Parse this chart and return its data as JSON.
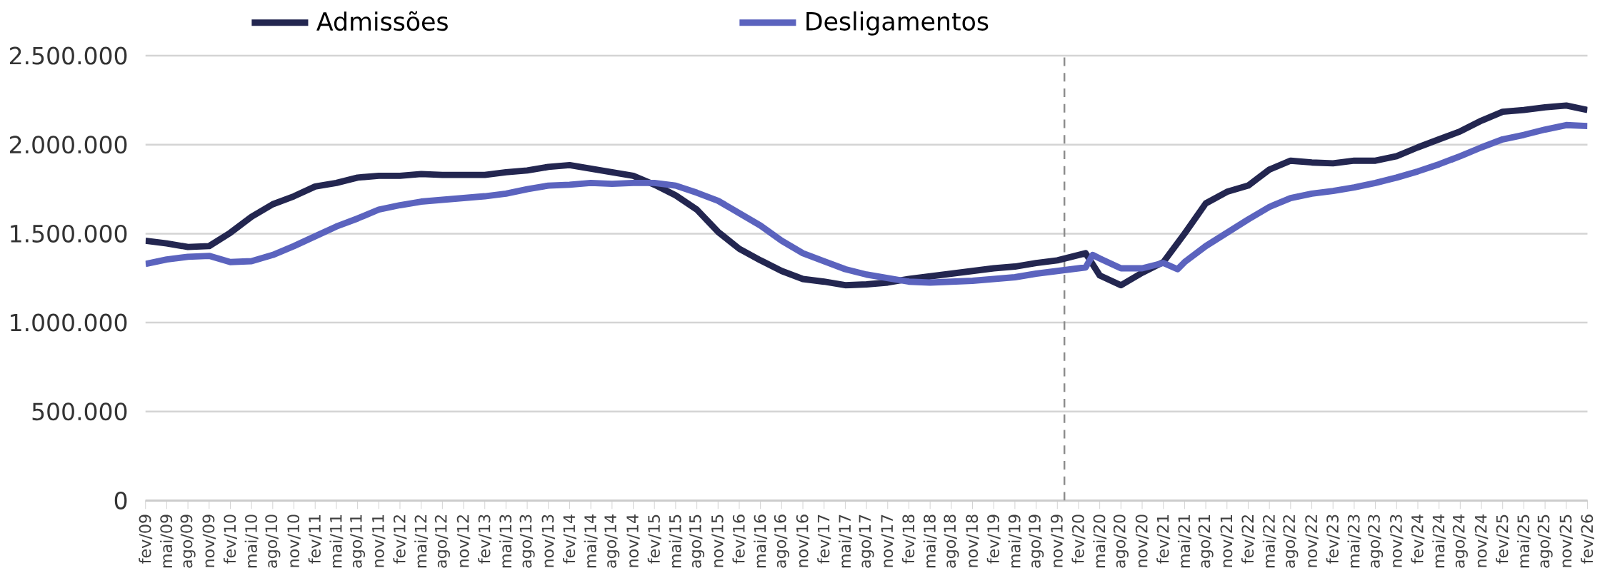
{
  "chart_data": {
    "type": "line",
    "xlim": [
      "2009-02",
      "2026-02"
    ],
    "xticks": [
      {
        "value": "2009-02",
        "label": "fev/09"
      },
      {
        "value": "2009-05",
        "label": "mai/09"
      },
      {
        "value": "2009-08",
        "label": "ago/09"
      },
      {
        "value": "2009-11",
        "label": "nov/09"
      },
      {
        "value": "2010-02",
        "label": "fev/10"
      },
      {
        "value": "2010-05",
        "label": "mai/10"
      },
      {
        "value": "2010-08",
        "label": "ago/10"
      },
      {
        "value": "2010-11",
        "label": "nov/10"
      },
      {
        "value": "2011-02",
        "label": "fev/11"
      },
      {
        "value": "2011-05",
        "label": "mai/11"
      },
      {
        "value": "2011-08",
        "label": "ago/11"
      },
      {
        "value": "2011-11",
        "label": "nov/11"
      },
      {
        "value": "2012-02",
        "label": "fev/12"
      },
      {
        "value": "2012-05",
        "label": "mai/12"
      },
      {
        "value": "2012-08",
        "label": "ago/12"
      },
      {
        "value": "2012-11",
        "label": "nov/12"
      },
      {
        "value": "2013-02",
        "label": "fev/13"
      },
      {
        "value": "2013-05",
        "label": "mai/13"
      },
      {
        "value": "2013-08",
        "label": "ago/13"
      },
      {
        "value": "2013-11",
        "label": "nov/13"
      },
      {
        "value": "2014-02",
        "label": "fev/14"
      },
      {
        "value": "2014-05",
        "label": "mai/14"
      },
      {
        "value": "2014-08",
        "label": "ago/14"
      },
      {
        "value": "2014-11",
        "label": "nov/14"
      },
      {
        "value": "2015-02",
        "label": "fev/15"
      },
      {
        "value": "2015-05",
        "label": "mai/15"
      },
      {
        "value": "2015-08",
        "label": "ago/15"
      },
      {
        "value": "2015-11",
        "label": "nov/15"
      },
      {
        "value": "2016-02",
        "label": "fev/16"
      },
      {
        "value": "2016-05",
        "label": "mai/16"
      },
      {
        "value": "2016-08",
        "label": "ago/16"
      },
      {
        "value": "2016-11",
        "label": "nov/16"
      },
      {
        "value": "2017-02",
        "label": "fev/17"
      },
      {
        "value": "2017-05",
        "label": "mai/17"
      },
      {
        "value": "2017-08",
        "label": "ago/17"
      },
      {
        "value": "2017-11",
        "label": "nov/17"
      },
      {
        "value": "2018-02",
        "label": "fev/18"
      },
      {
        "value": "2018-05",
        "label": "mai/18"
      },
      {
        "value": "2018-08",
        "label": "ago/18"
      },
      {
        "value": "2018-11",
        "label": "nov/18"
      },
      {
        "value": "2019-02",
        "label": "fev/19"
      },
      {
        "value": "2019-05",
        "label": "mai/19"
      },
      {
        "value": "2019-08",
        "label": "ago/19"
      },
      {
        "value": "2019-11",
        "label": "nov/19"
      },
      {
        "value": "2020-02",
        "label": "fev/20"
      },
      {
        "value": "2020-05",
        "label": "mai/20"
      },
      {
        "value": "2020-08",
        "label": "ago/20"
      },
      {
        "value": "2020-11",
        "label": "nov/20"
      },
      {
        "value": "2021-02",
        "label": "fev/21"
      },
      {
        "value": "2021-05",
        "label": "mai/21"
      },
      {
        "value": "2021-08",
        "label": "ago/21"
      },
      {
        "value": "2021-11",
        "label": "nov/21"
      },
      {
        "value": "2022-02",
        "label": "fev/22"
      },
      {
        "value": "2022-05",
        "label": "mai/22"
      },
      {
        "value": "2022-08",
        "label": "ago/22"
      },
      {
        "value": "2022-11",
        "label": "nov/22"
      },
      {
        "value": "2023-02",
        "label": "fev/23"
      },
      {
        "value": "2023-05",
        "label": "mai/23"
      },
      {
        "value": "2023-08",
        "label": "ago/23"
      },
      {
        "value": "2023-11",
        "label": "nov/23"
      },
      {
        "value": "2024-02",
        "label": "fev/24"
      },
      {
        "value": "2024-05",
        "label": "mai/24"
      },
      {
        "value": "2024-08",
        "label": "ago/24"
      },
      {
        "value": "2024-11",
        "label": "nov/24"
      },
      {
        "value": "2025-02",
        "label": "fev/25"
      },
      {
        "value": "2025-05",
        "label": "mai/25"
      },
      {
        "value": "2025-08",
        "label": "ago/25"
      },
      {
        "value": "2025-11",
        "label": "nov/25"
      },
      {
        "value": "2026-02",
        "label": "fev/26"
      }
    ],
    "ylim": [
      0,
      2500000
    ],
    "yticks": [
      0,
      {
        "value": 500000,
        "label": "500.000"
      },
      {
        "value": 1000000,
        "label": "1.000.000"
      },
      {
        "value": 1500000,
        "label": "1.500.000"
      },
      {
        "value": 2000000,
        "label": "2.000.000"
      },
      {
        "value": 2500000,
        "label": "2.500.000"
      }
    ],
    "grid": "y",
    "legend": "top",
    "marker": "none",
    "line_style": "solid",
    "ref_lines": [
      {
        "axis": "x",
        "value": "2019-12",
        "color": "#8c8c8c",
        "line_style": "dashed"
      }
    ],
    "series": [
      {
        "name": "Admissões",
        "color": "#232650",
        "x": [
          "2009-02",
          "2009-05",
          "2009-08",
          "2009-11",
          "2010-02",
          "2010-05",
          "2010-08",
          "2010-11",
          "2011-02",
          "2011-05",
          "2011-08",
          "2011-11",
          "2012-02",
          "2012-05",
          "2012-08",
          "2012-11",
          "2013-02",
          "2013-05",
          "2013-08",
          "2013-11",
          "2014-02",
          "2014-05",
          "2014-08",
          "2014-11",
          "2015-02",
          "2015-05",
          "2015-08",
          "2015-11",
          "2016-02",
          "2016-05",
          "2016-08",
          "2016-11",
          "2017-02",
          "2017-05",
          "2017-08",
          "2017-11",
          "2018-02",
          "2018-05",
          "2018-08",
          "2018-11",
          "2019-02",
          "2019-05",
          "2019-08",
          "2019-11",
          "2020-02",
          "2020-03",
          "2020-05",
          "2020-08",
          "2020-11",
          "2021-02",
          "2021-05",
          "2021-08",
          "2021-11",
          "2022-02",
          "2022-05",
          "2022-08",
          "2022-11",
          "2023-02",
          "2023-05",
          "2023-08",
          "2023-11",
          "2024-02",
          "2024-05",
          "2024-08",
          "2024-11",
          "2025-02",
          "2025-05",
          "2025-08",
          "2025-11",
          "2026-02"
        ],
        "values": [
          1460000,
          1445000,
          1425000,
          1430000,
          1505000,
          1595000,
          1665000,
          1710000,
          1765000,
          1785000,
          1815000,
          1825000,
          1825000,
          1835000,
          1830000,
          1830000,
          1830000,
          1845000,
          1855000,
          1875000,
          1885000,
          1865000,
          1845000,
          1825000,
          1775000,
          1715000,
          1635000,
          1510000,
          1415000,
          1350000,
          1290000,
          1245000,
          1230000,
          1210000,
          1215000,
          1225000,
          1245000,
          1260000,
          1275000,
          1290000,
          1305000,
          1315000,
          1335000,
          1350000,
          1380000,
          1390000,
          1265000,
          1210000,
          1280000,
          1340000,
          1500000,
          1670000,
          1735000,
          1770000,
          1860000,
          1910000,
          1900000,
          1895000,
          1910000,
          1910000,
          1935000,
          1985000,
          2030000,
          2075000,
          2135000,
          2185000,
          2195000,
          2210000,
          2220000,
          2195000
        ]
      },
      {
        "name": "Desligamentos",
        "color": "#5b63be",
        "x": [
          "2009-02",
          "2009-05",
          "2009-08",
          "2009-11",
          "2010-02",
          "2010-05",
          "2010-08",
          "2010-11",
          "2011-02",
          "2011-05",
          "2011-08",
          "2011-11",
          "2012-02",
          "2012-05",
          "2012-08",
          "2012-11",
          "2013-02",
          "2013-05",
          "2013-08",
          "2013-11",
          "2014-02",
          "2014-05",
          "2014-08",
          "2014-11",
          "2015-02",
          "2015-05",
          "2015-08",
          "2015-11",
          "2016-02",
          "2016-05",
          "2016-08",
          "2016-11",
          "2017-02",
          "2017-05",
          "2017-08",
          "2017-11",
          "2018-02",
          "2018-05",
          "2018-08",
          "2018-11",
          "2019-02",
          "2019-05",
          "2019-08",
          "2019-11",
          "2020-02",
          "2020-03",
          "2020-04",
          "2020-05",
          "2020-08",
          "2020-11",
          "2021-02",
          "2021-04",
          "2021-05",
          "2021-08",
          "2021-11",
          "2022-02",
          "2022-05",
          "2022-08",
          "2022-11",
          "2023-02",
          "2023-05",
          "2023-08",
          "2023-11",
          "2024-02",
          "2024-05",
          "2024-08",
          "2024-11",
          "2025-02",
          "2025-05",
          "2025-08",
          "2025-11",
          "2026-02"
        ],
        "values": [
          1330000,
          1355000,
          1370000,
          1375000,
          1340000,
          1345000,
          1380000,
          1430000,
          1485000,
          1540000,
          1585000,
          1635000,
          1660000,
          1680000,
          1690000,
          1700000,
          1710000,
          1725000,
          1750000,
          1770000,
          1775000,
          1785000,
          1780000,
          1785000,
          1785000,
          1770000,
          1730000,
          1685000,
          1615000,
          1545000,
          1460000,
          1390000,
          1345000,
          1300000,
          1270000,
          1250000,
          1230000,
          1225000,
          1230000,
          1235000,
          1245000,
          1255000,
          1275000,
          1290000,
          1305000,
          1310000,
          1380000,
          1360000,
          1305000,
          1305000,
          1335000,
          1300000,
          1340000,
          1430000,
          1505000,
          1580000,
          1650000,
          1700000,
          1725000,
          1740000,
          1760000,
          1785000,
          1815000,
          1850000,
          1890000,
          1935000,
          1985000,
          2030000,
          2055000,
          2085000,
          2110000,
          2105000
        ]
      }
    ]
  }
}
